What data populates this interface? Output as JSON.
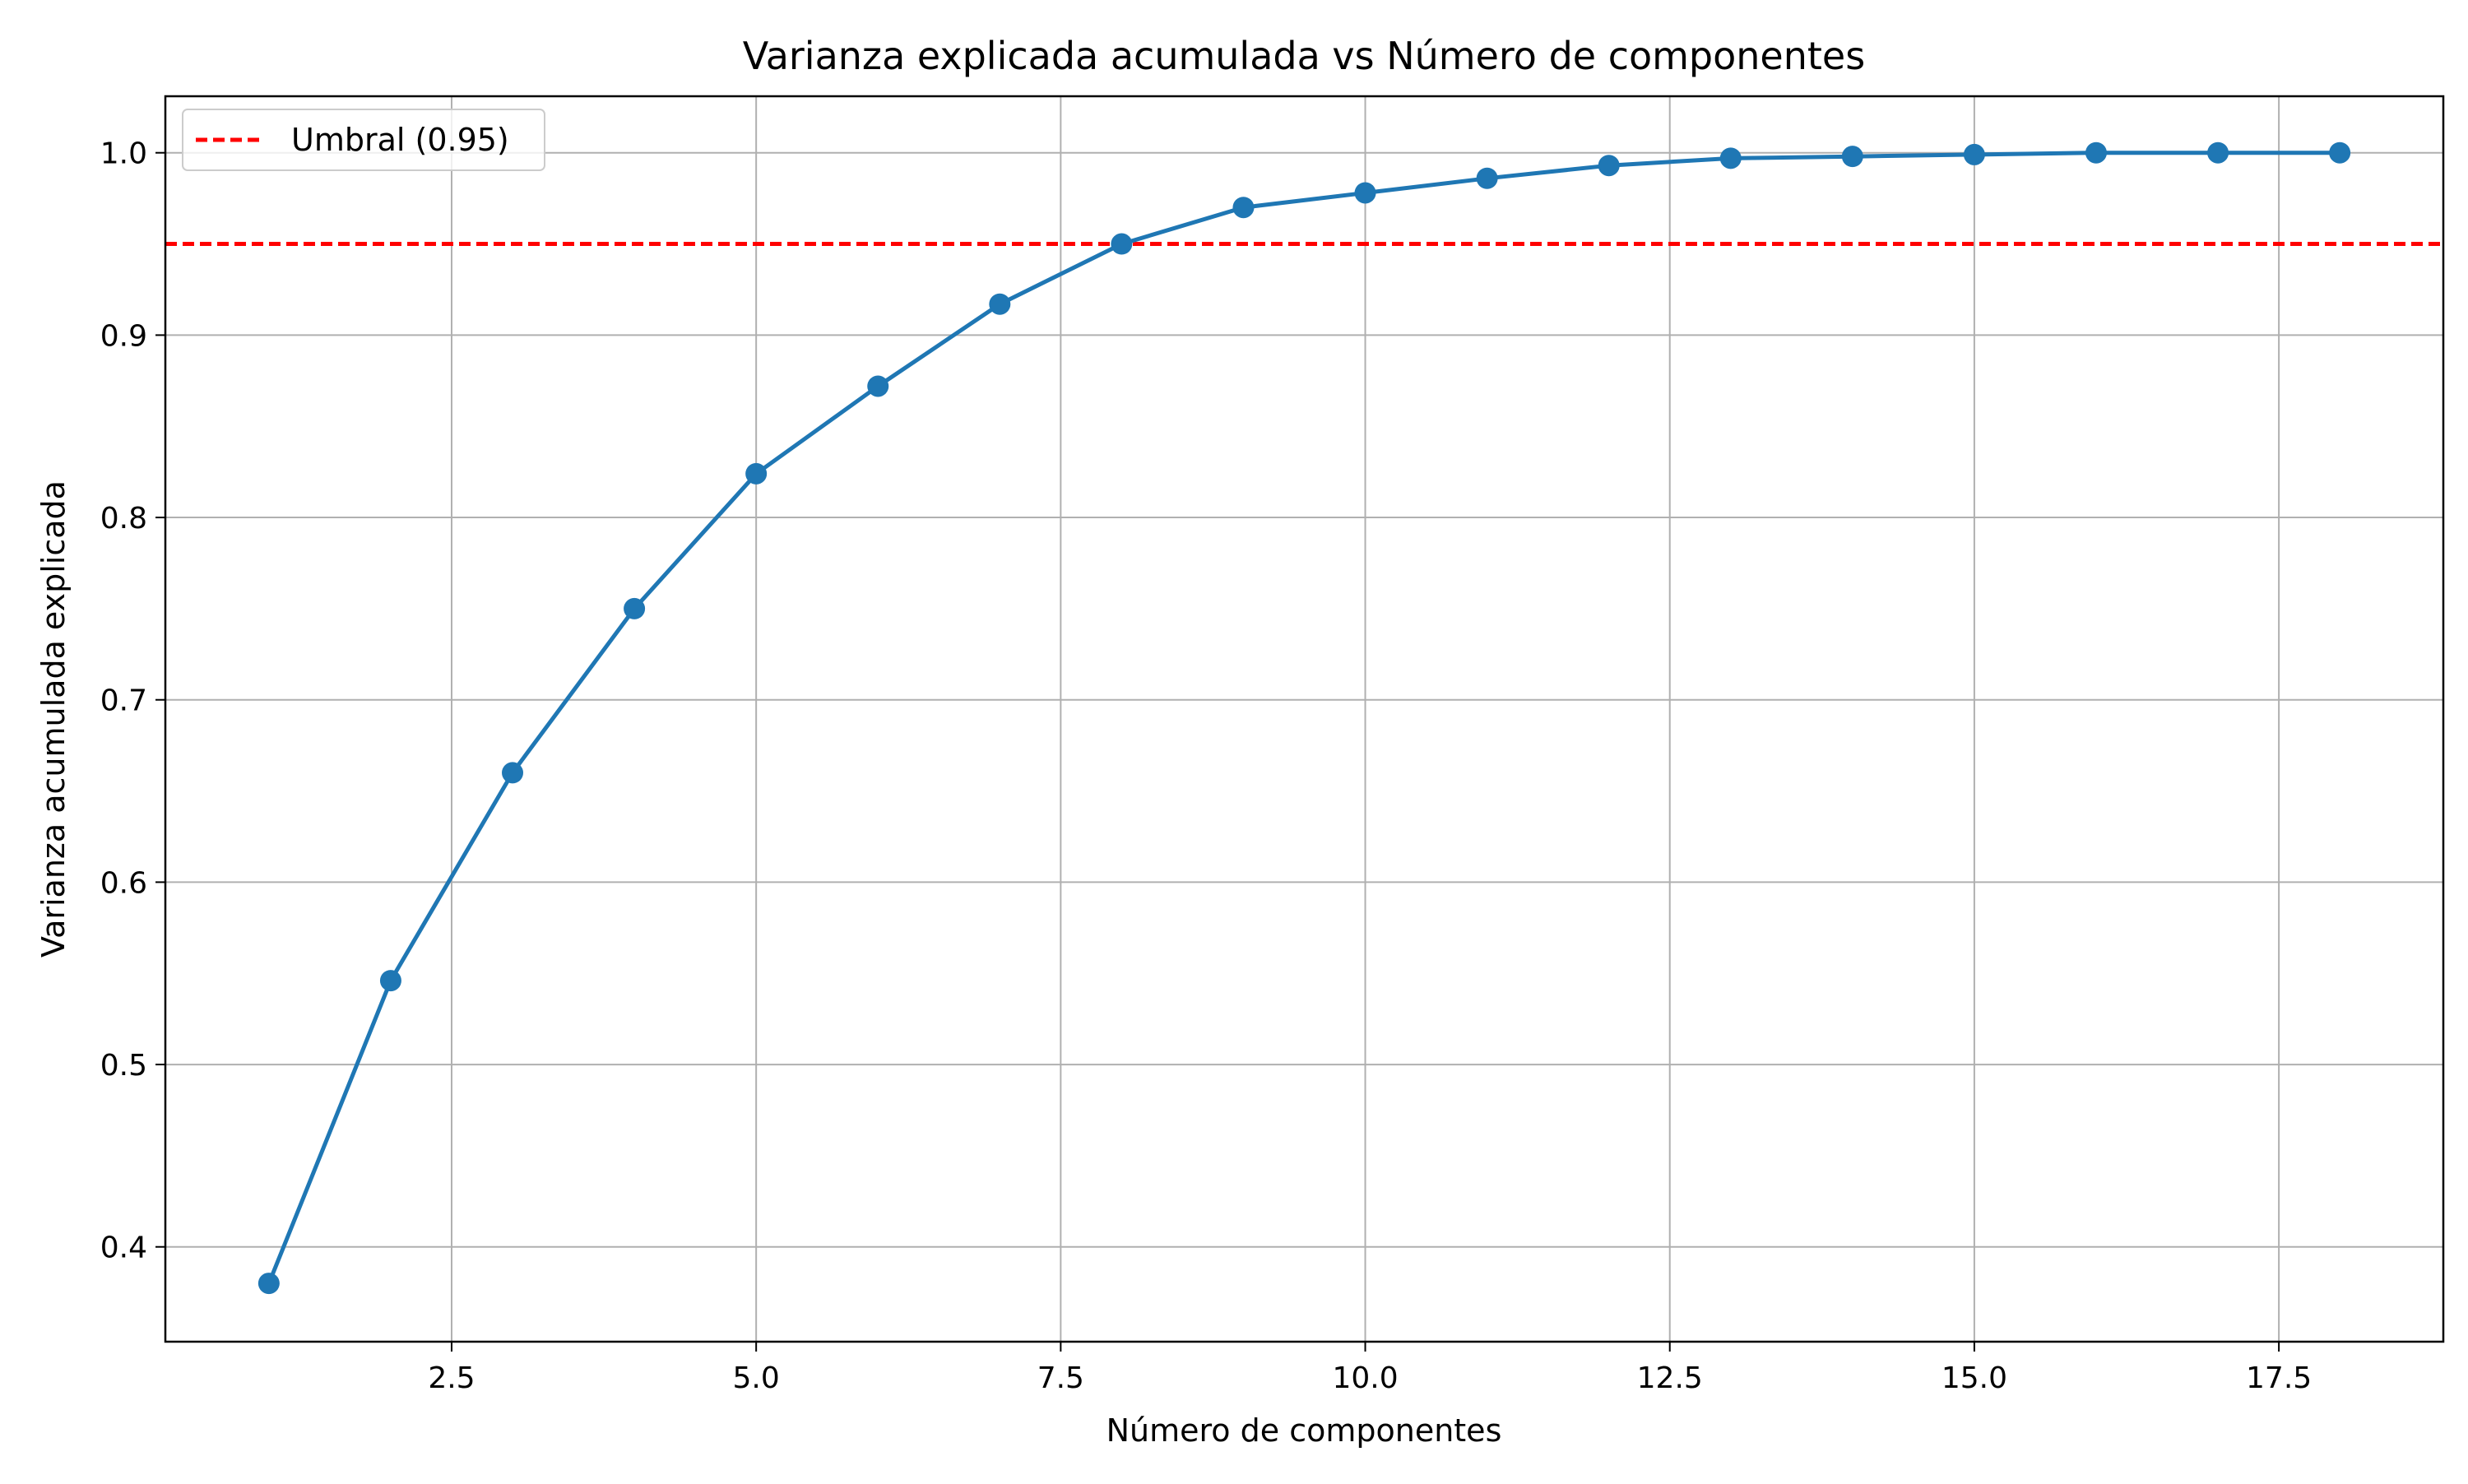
{
  "chart_data": {
    "type": "line",
    "title": "Varianza explicada acumulada vs Número de componentes",
    "xlabel": "Número de componentes",
    "ylabel": "Varianza acumulada explicada",
    "xlim": [
      0.15,
      18.85
    ],
    "ylim": [
      0.348,
      1.031
    ],
    "x_ticks": [
      2.5,
      5.0,
      7.5,
      10.0,
      12.5,
      15.0,
      17.5
    ],
    "x_tick_labels": [
      "2.5",
      "5.0",
      "7.5",
      "10.0",
      "12.5",
      "15.0",
      "17.5"
    ],
    "y_ticks": [
      0.4,
      0.5,
      0.6,
      0.7,
      0.8,
      0.9,
      1.0
    ],
    "y_tick_labels": [
      "0.4",
      "0.5",
      "0.6",
      "0.7",
      "0.8",
      "0.9",
      "1.0"
    ],
    "grid": true,
    "legend_position": "top-left",
    "series": [
      {
        "color": "#1f77b4",
        "marker": "circle",
        "x": [
          1,
          2,
          3,
          4,
          5,
          6,
          7,
          8,
          9,
          10,
          11,
          12,
          13,
          14,
          15,
          16,
          17,
          18
        ],
        "values": [
          0.38,
          0.546,
          0.66,
          0.75,
          0.824,
          0.872,
          0.917,
          0.95,
          0.97,
          0.978,
          0.986,
          0.993,
          0.997,
          0.998,
          0.999,
          1.0,
          1.0,
          1.0
        ]
      }
    ],
    "reference_lines": [
      {
        "name": "Umbral (0.95)",
        "orientation": "horizontal",
        "value": 0.95,
        "color": "#ff0000",
        "style": "dashed"
      }
    ]
  }
}
